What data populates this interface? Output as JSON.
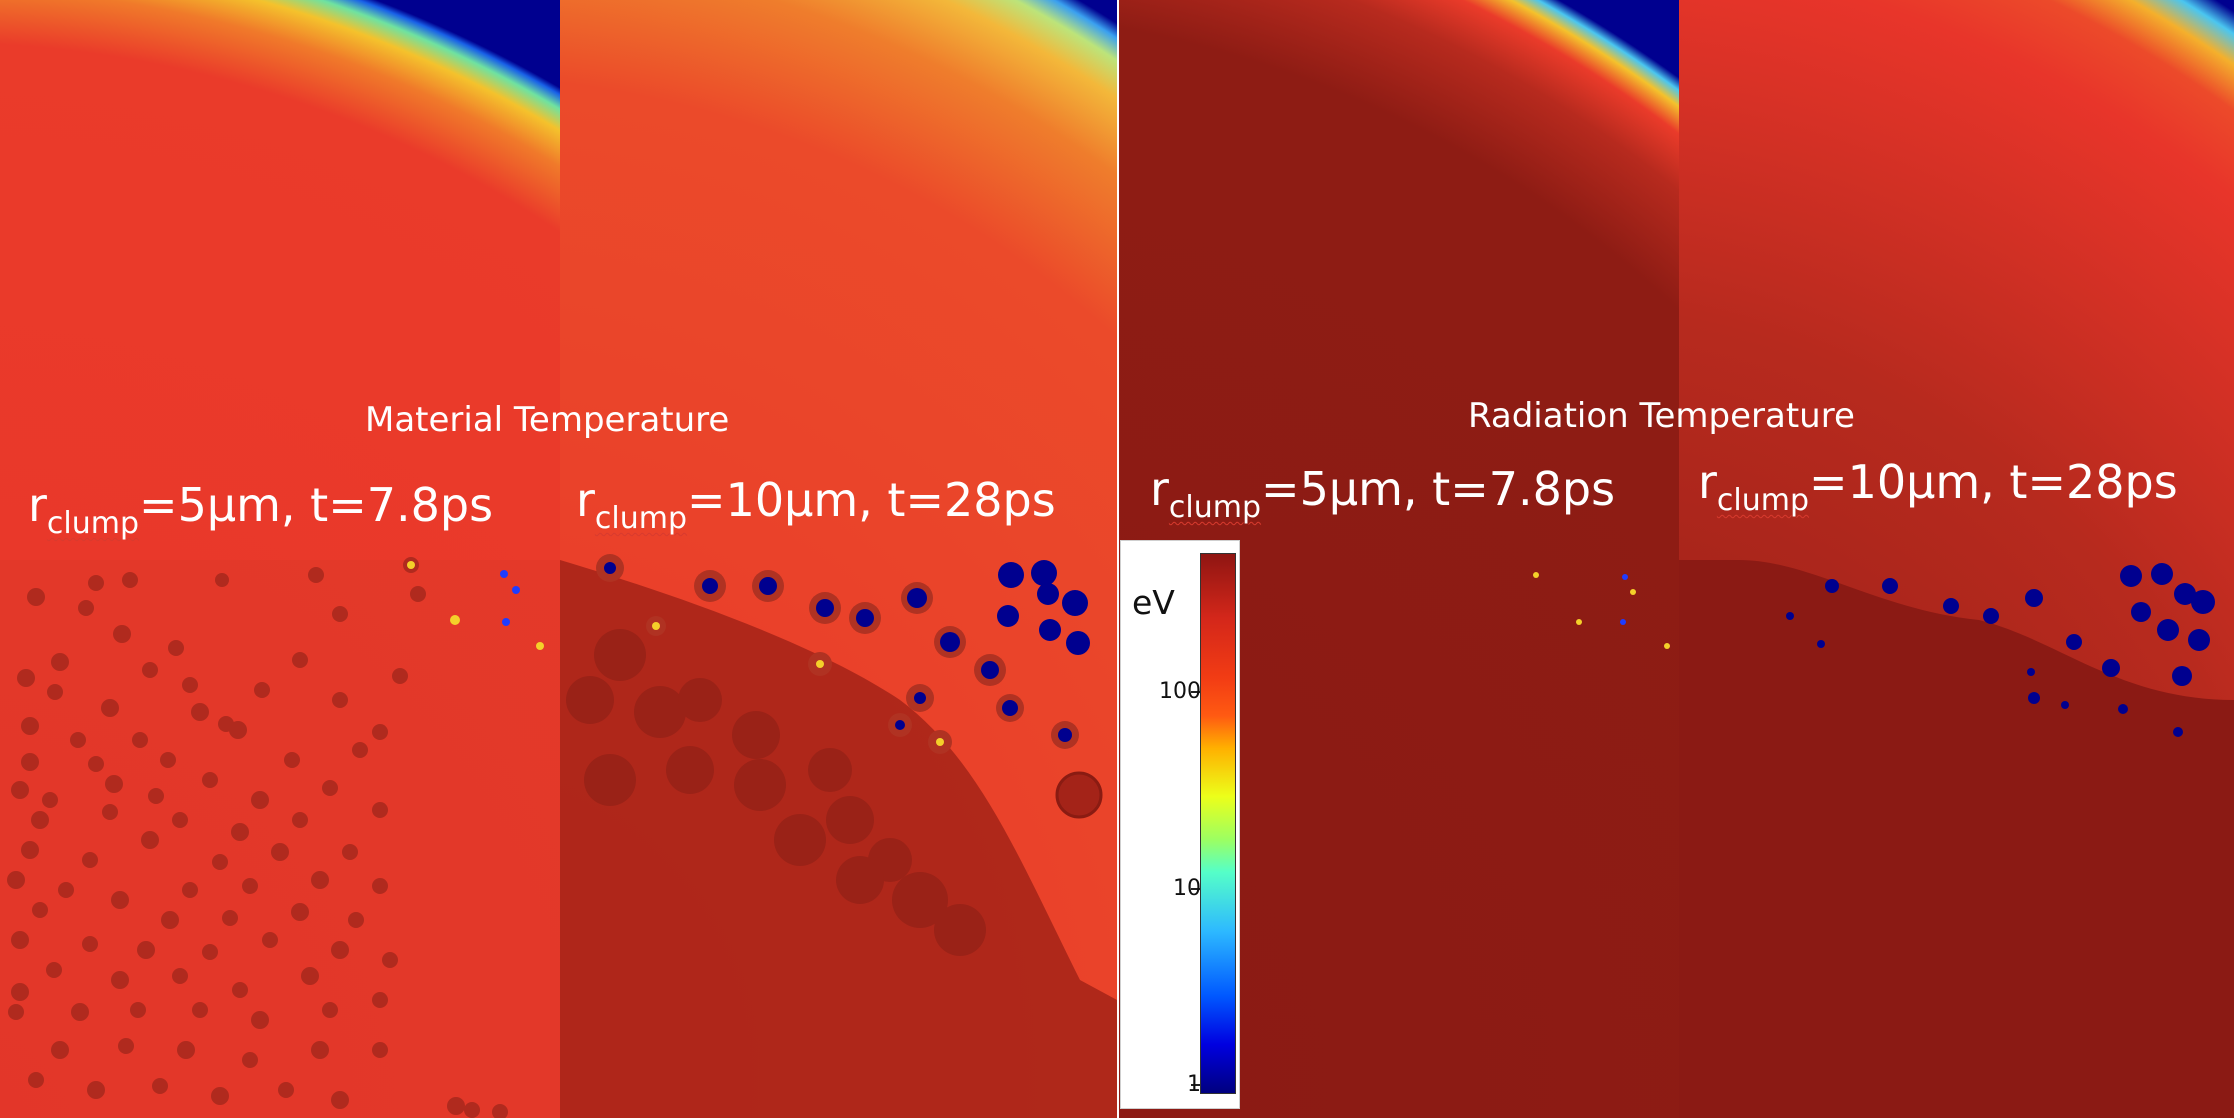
{
  "sections": {
    "material": {
      "title": "Material Temperature"
    },
    "radiation": {
      "title": "Radiation Temperature"
    }
  },
  "panels": [
    {
      "id": "mat-5",
      "clump_symbol": "r",
      "clump_sub": "clump",
      "params": "=5μm, t=7.8ps"
    },
    {
      "id": "mat-10",
      "clump_symbol": "r",
      "clump_sub": "clump",
      "params": "=10μm, t=28ps"
    },
    {
      "id": "rad-5",
      "clump_symbol": "r",
      "clump_sub": "clump",
      "params": "=5μm, t=7.8ps"
    },
    {
      "id": "rad-10",
      "clump_symbol": "r",
      "clump_sub": "clump",
      "params": "=10μm, t=28ps"
    }
  ],
  "colorbar": {
    "unit": "eV",
    "scale": "log",
    "range": [
      1,
      300
    ],
    "ticks": [
      "100",
      "10",
      "1"
    ]
  },
  "colors": {
    "hot_material": "#e8352a",
    "hot_radiation": "#8b1a14",
    "cold_region": "#00008f",
    "clump_dark": "#b02a1e"
  }
}
